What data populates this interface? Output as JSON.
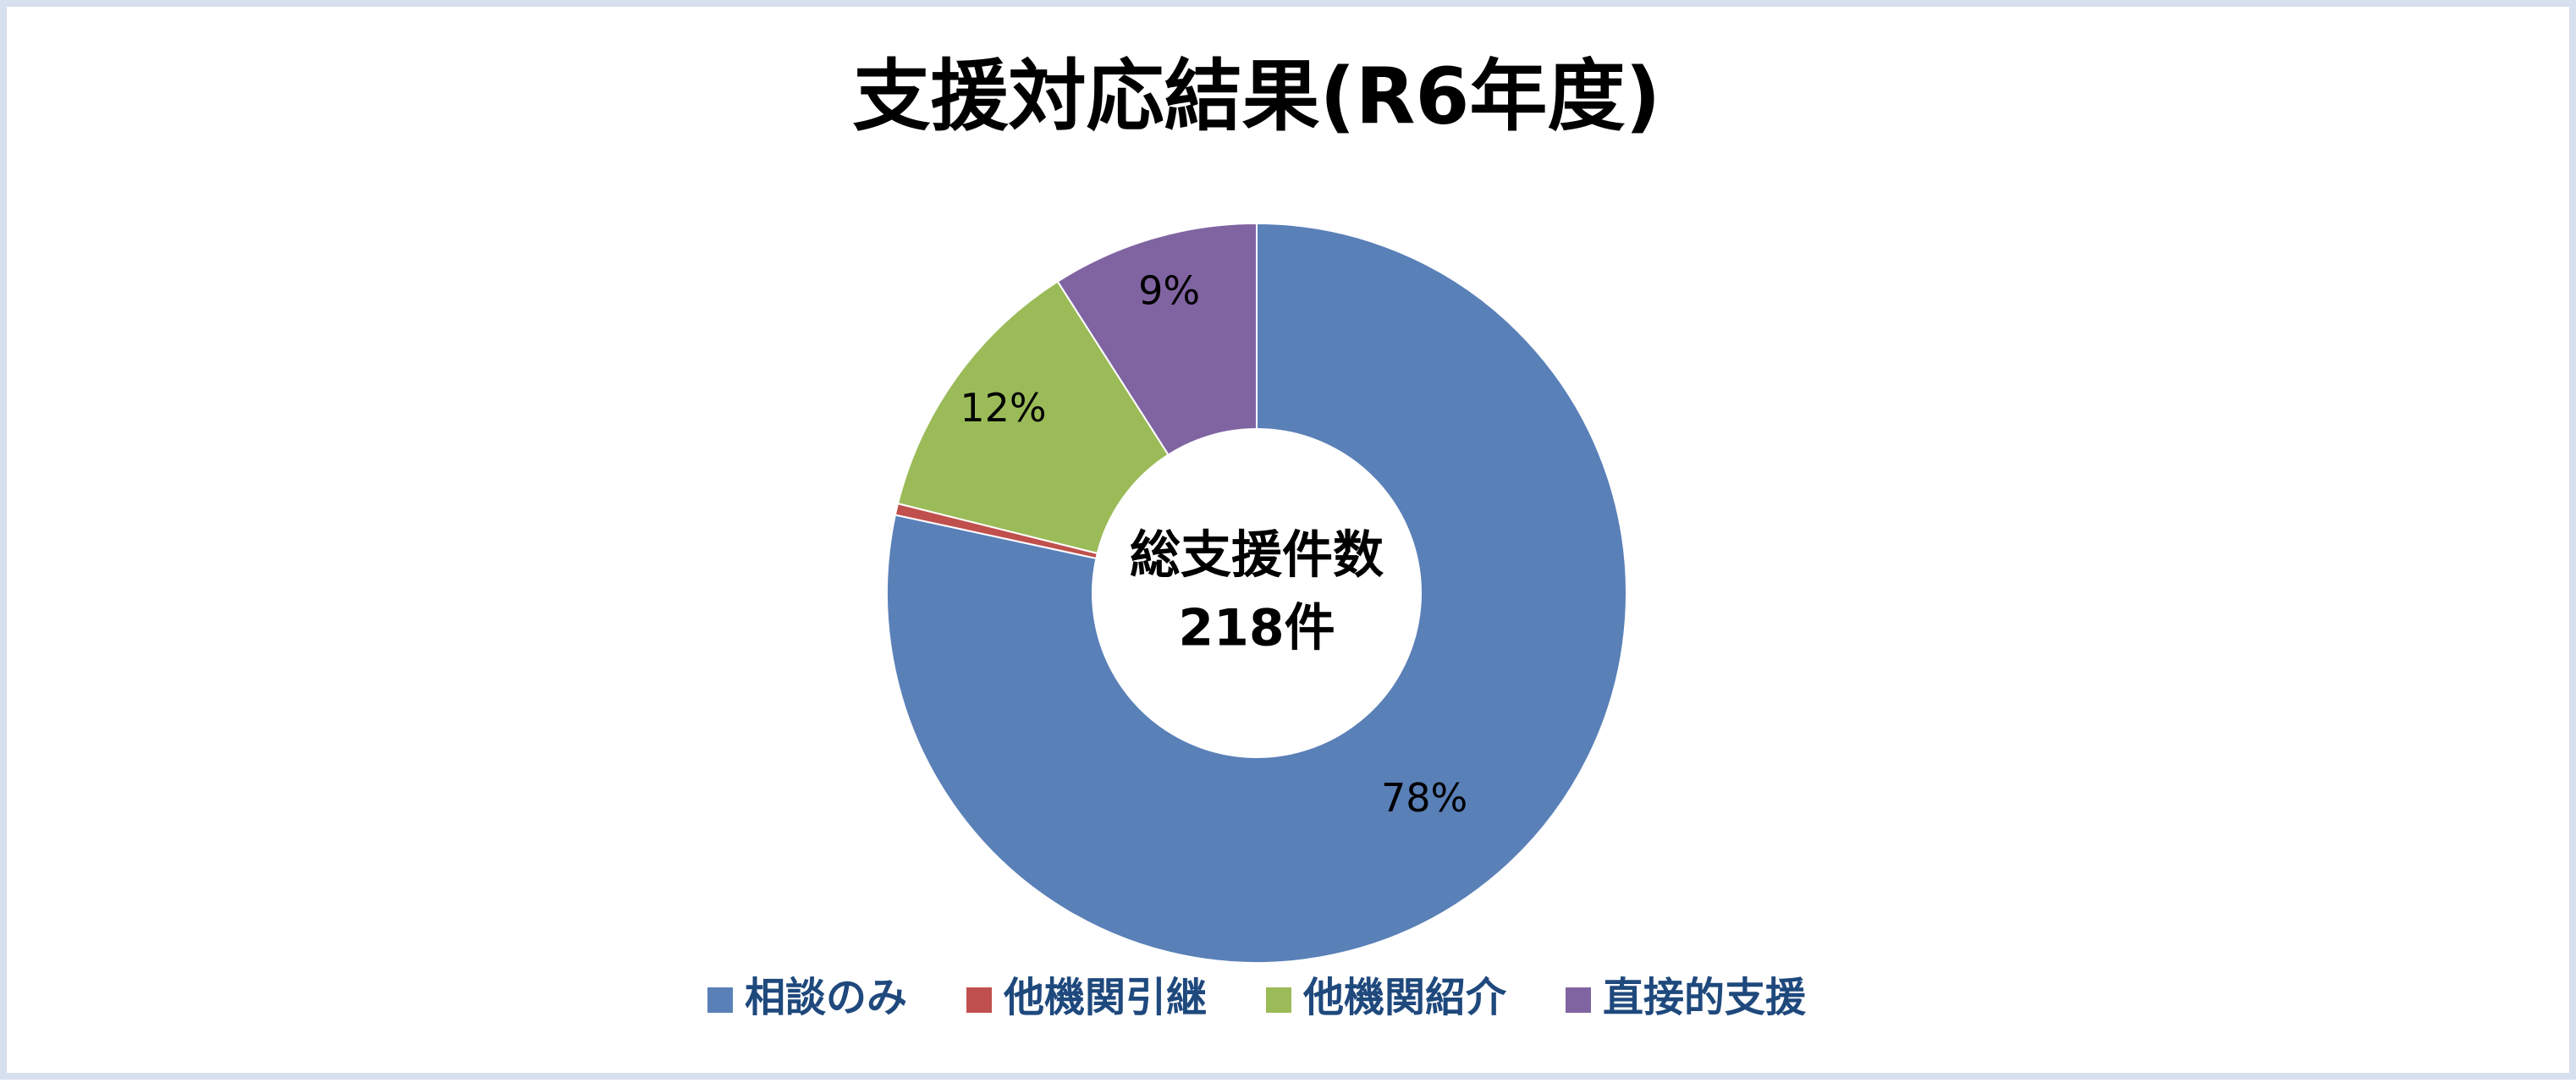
{
  "chart_data": {
    "type": "donut",
    "title": "支援対応結果(R6年度)",
    "categories": [
      "相談のみ",
      "他機関引継",
      "他機関紹介",
      "直接的支援"
    ],
    "values": [
      78,
      0.5,
      12,
      9
    ],
    "value_labels": [
      "78%",
      null,
      "12%",
      "9%"
    ],
    "colors": [
      "#5a80b8",
      "#c0504d",
      "#9bbb59",
      "#8064a2"
    ],
    "center_label": [
      "総支援件数",
      "218件"
    ],
    "legend": "bottom"
  }
}
